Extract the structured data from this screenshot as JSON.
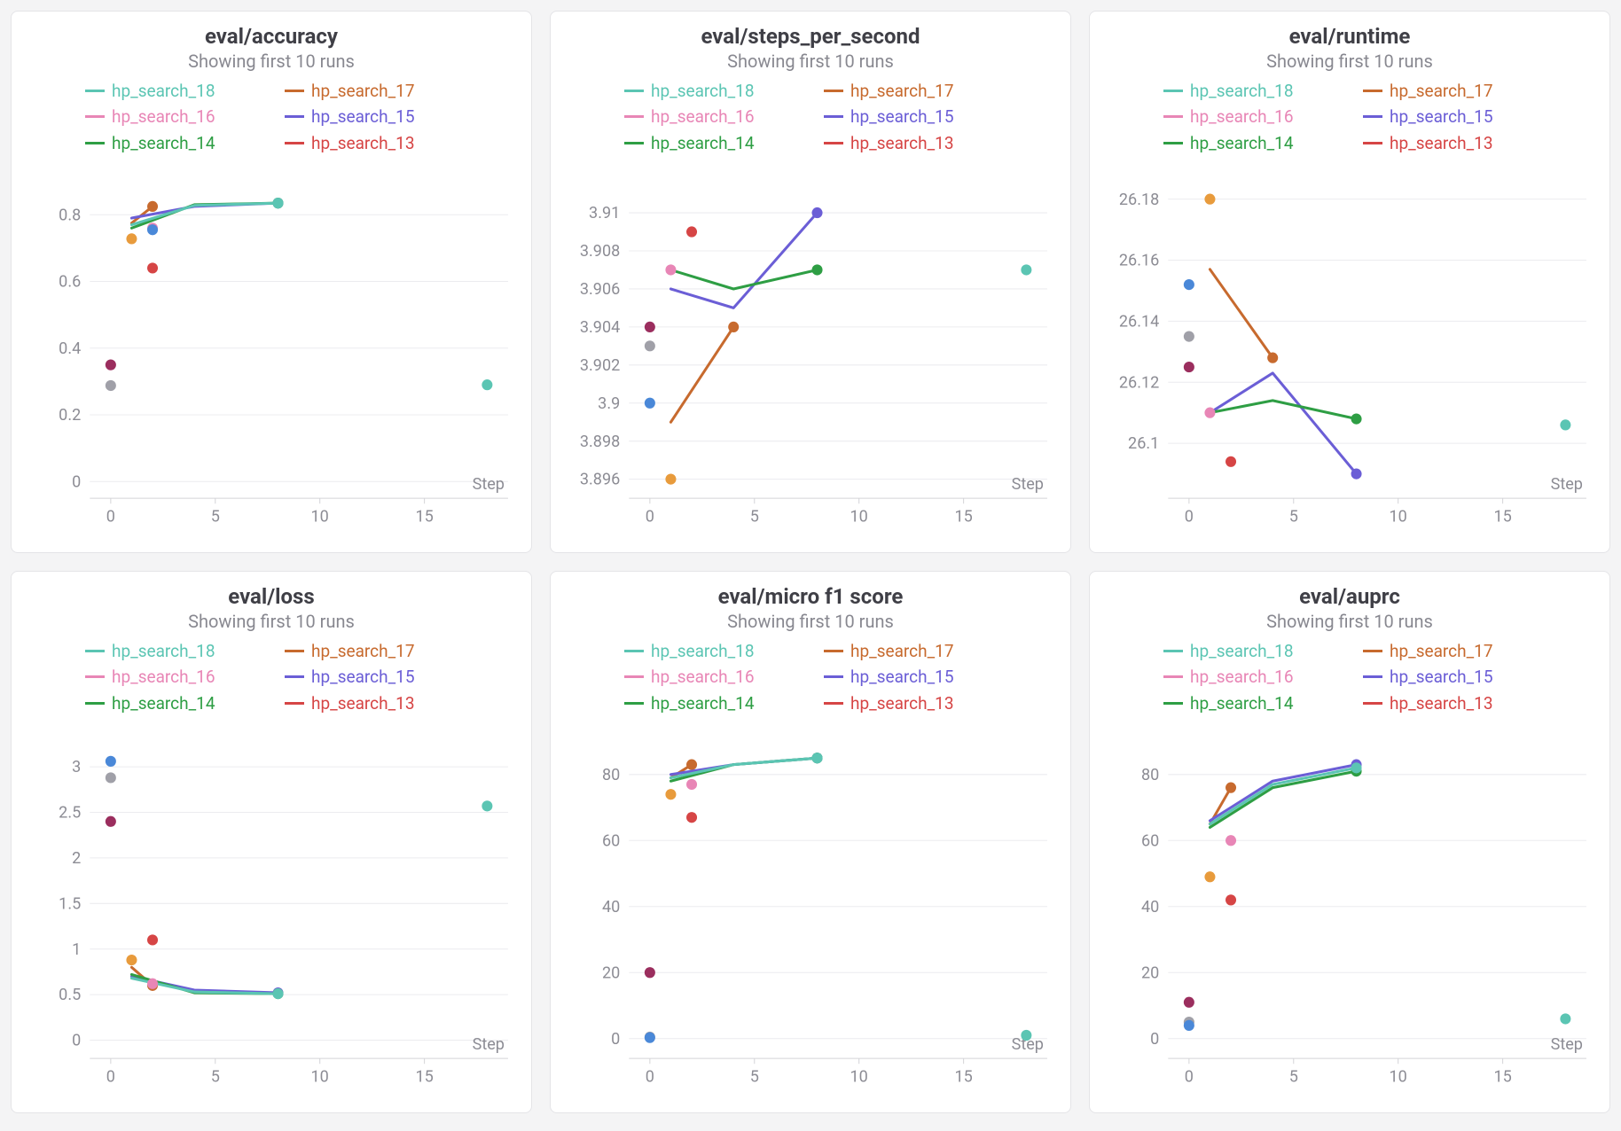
{
  "background_color": "#f4f4f5",
  "panel_bg": "#ffffff",
  "panel_border": "#e4e4e7",
  "grid_color": "#ececef",
  "axis_color": "#d4d4d8",
  "tick_font_color": "#8c8c94",
  "title_font_color": "#3f3f46",
  "title_fontsize": 24,
  "subtitle_fontsize": 20,
  "tick_fontsize": 18,
  "legend_fontsize": 19,
  "subtitle_text": "Showing first 10 runs",
  "xaxis_label": "Step",
  "run_colors": {
    "hp_search_18": "#5bc5b3",
    "hp_search_17": "#c76a2e",
    "hp_search_16": "#e886b6",
    "hp_search_15": "#6b5ed6",
    "hp_search_14": "#2e9e44",
    "hp_search_13": "#d64545",
    "hp_search_12": "#a0a0a8",
    "hp_search_11": "#4a88d8",
    "hp_search_10": "#e89b3c",
    "hp_search_9": "#9b2e5e"
  },
  "legend_order": [
    "hp_search_18",
    "hp_search_17",
    "hp_search_16",
    "hp_search_15",
    "hp_search_14",
    "hp_search_13"
  ],
  "panels": [
    {
      "id": "accuracy",
      "title": "eval/accuracy",
      "type": "line+scatter",
      "xlim": [
        -1,
        19
      ],
      "xticks": [
        0,
        5,
        10,
        15
      ],
      "ylim": [
        -0.05,
        0.92
      ],
      "yticks": [
        0,
        0.2,
        0.4,
        0.6,
        0.8
      ],
      "line_width": 3,
      "marker_r": 6,
      "series": [
        {
          "run": "hp_search_17",
          "mode": "line",
          "pts": [
            [
              1,
              0.775
            ],
            [
              2,
              0.825
            ]
          ]
        },
        {
          "run": "hp_search_15",
          "mode": "line",
          "pts": [
            [
              1,
              0.79
            ],
            [
              4,
              0.825
            ],
            [
              8,
              0.835
            ]
          ]
        },
        {
          "run": "hp_search_14",
          "mode": "line",
          "pts": [
            [
              1,
              0.76
            ],
            [
              4,
              0.83
            ],
            [
              8,
              0.835
            ]
          ]
        },
        {
          "run": "hp_search_18",
          "mode": "line",
          "pts": [
            [
              1,
              0.77
            ],
            [
              4,
              0.828
            ],
            [
              8,
              0.835
            ]
          ]
        },
        {
          "run": "hp_search_12",
          "mode": "point",
          "pts": [
            [
              0,
              0.288
            ]
          ]
        },
        {
          "run": "hp_search_9",
          "mode": "point",
          "pts": [
            [
              0,
              0.35
            ]
          ]
        },
        {
          "run": "hp_search_10",
          "mode": "point",
          "pts": [
            [
              1,
              0.728
            ]
          ]
        },
        {
          "run": "hp_search_16",
          "mode": "point",
          "pts": [
            [
              2,
              0.76
            ]
          ]
        },
        {
          "run": "hp_search_11",
          "mode": "point",
          "pts": [
            [
              2,
              0.755
            ]
          ]
        },
        {
          "run": "hp_search_13",
          "mode": "point",
          "pts": [
            [
              2,
              0.64
            ]
          ]
        },
        {
          "run": "hp_search_18",
          "mode": "point",
          "pts": [
            [
              18,
              0.29
            ]
          ]
        }
      ]
    },
    {
      "id": "sps",
      "title": "eval/steps_per_second",
      "type": "line+scatter",
      "xlim": [
        -1,
        19
      ],
      "xticks": [
        0,
        5,
        10,
        15
      ],
      "ylim": [
        3.895,
        3.912
      ],
      "yticks": [
        3.896,
        3.898,
        3.9,
        3.902,
        3.904,
        3.906,
        3.908,
        3.91
      ],
      "line_width": 3,
      "marker_r": 6,
      "series": [
        {
          "run": "hp_search_17",
          "mode": "line",
          "pts": [
            [
              1,
              3.899
            ],
            [
              4,
              3.904
            ]
          ]
        },
        {
          "run": "hp_search_15",
          "mode": "line",
          "pts": [
            [
              1,
              3.906
            ],
            [
              4,
              3.905
            ],
            [
              8,
              3.91
            ]
          ]
        },
        {
          "run": "hp_search_14",
          "mode": "line",
          "pts": [
            [
              1,
              3.907
            ],
            [
              4,
              3.906
            ],
            [
              8,
              3.907
            ]
          ]
        },
        {
          "run": "hp_search_16",
          "mode": "point",
          "pts": [
            [
              1,
              3.907
            ]
          ]
        },
        {
          "run": "hp_search_13",
          "mode": "point",
          "pts": [
            [
              2,
              3.909
            ]
          ]
        },
        {
          "run": "hp_search_9",
          "mode": "point",
          "pts": [
            [
              0,
              3.904
            ]
          ]
        },
        {
          "run": "hp_search_12",
          "mode": "point",
          "pts": [
            [
              0,
              3.903
            ]
          ]
        },
        {
          "run": "hp_search_11",
          "mode": "point",
          "pts": [
            [
              0,
              3.9
            ]
          ]
        },
        {
          "run": "hp_search_10",
          "mode": "point",
          "pts": [
            [
              1,
              3.896
            ]
          ]
        },
        {
          "run": "hp_search_18",
          "mode": "point",
          "pts": [
            [
              18,
              3.907
            ]
          ]
        }
      ]
    },
    {
      "id": "runtime",
      "title": "eval/runtime",
      "type": "line+scatter",
      "xlim": [
        -1,
        19
      ],
      "xticks": [
        0,
        5,
        10,
        15
      ],
      "ylim": [
        26.082,
        26.188
      ],
      "yticks": [
        26.1,
        26.12,
        26.14,
        26.16,
        26.18
      ],
      "line_width": 3,
      "marker_r": 6,
      "series": [
        {
          "run": "hp_search_17",
          "mode": "line",
          "pts": [
            [
              1,
              26.157
            ],
            [
              4,
              26.128
            ]
          ]
        },
        {
          "run": "hp_search_15",
          "mode": "line",
          "pts": [
            [
              1,
              26.11
            ],
            [
              4,
              26.123
            ],
            [
              8,
              26.09
            ]
          ]
        },
        {
          "run": "hp_search_14",
          "mode": "line",
          "pts": [
            [
              1,
              26.11
            ],
            [
              4,
              26.114
            ],
            [
              8,
              26.108
            ]
          ]
        },
        {
          "run": "hp_search_10",
          "mode": "point",
          "pts": [
            [
              1,
              26.18
            ]
          ]
        },
        {
          "run": "hp_search_11",
          "mode": "point",
          "pts": [
            [
              0,
              26.152
            ]
          ]
        },
        {
          "run": "hp_search_12",
          "mode": "point",
          "pts": [
            [
              0,
              26.135
            ]
          ]
        },
        {
          "run": "hp_search_9",
          "mode": "point",
          "pts": [
            [
              0,
              26.125
            ]
          ]
        },
        {
          "run": "hp_search_16",
          "mode": "point",
          "pts": [
            [
              1,
              26.11
            ]
          ]
        },
        {
          "run": "hp_search_13",
          "mode": "point",
          "pts": [
            [
              2,
              26.094
            ]
          ]
        },
        {
          "run": "hp_search_18",
          "mode": "point",
          "pts": [
            [
              18,
              26.106
            ]
          ]
        }
      ]
    },
    {
      "id": "loss",
      "title": "eval/loss",
      "type": "line+scatter",
      "xlim": [
        -1,
        19
      ],
      "xticks": [
        0,
        5,
        10,
        15
      ],
      "ylim": [
        -0.2,
        3.35
      ],
      "yticks": [
        0,
        0.5,
        1,
        1.5,
        2,
        2.5,
        3
      ],
      "line_width": 3,
      "marker_r": 6,
      "series": [
        {
          "run": "hp_search_17",
          "mode": "line",
          "pts": [
            [
              1,
              0.8
            ],
            [
              2,
              0.6
            ]
          ]
        },
        {
          "run": "hp_search_15",
          "mode": "line",
          "pts": [
            [
              1,
              0.7
            ],
            [
              4,
              0.55
            ],
            [
              8,
              0.52
            ]
          ]
        },
        {
          "run": "hp_search_14",
          "mode": "line",
          "pts": [
            [
              1,
              0.72
            ],
            [
              4,
              0.52
            ],
            [
              8,
              0.51
            ]
          ]
        },
        {
          "run": "hp_search_18",
          "mode": "line",
          "pts": [
            [
              1,
              0.68
            ],
            [
              4,
              0.53
            ],
            [
              8,
              0.51
            ]
          ]
        },
        {
          "run": "hp_search_11",
          "mode": "point",
          "pts": [
            [
              0,
              3.06
            ]
          ]
        },
        {
          "run": "hp_search_12",
          "mode": "point",
          "pts": [
            [
              0,
              2.88
            ]
          ]
        },
        {
          "run": "hp_search_9",
          "mode": "point",
          "pts": [
            [
              0,
              2.4
            ]
          ]
        },
        {
          "run": "hp_search_13",
          "mode": "point",
          "pts": [
            [
              2,
              1.1
            ]
          ]
        },
        {
          "run": "hp_search_10",
          "mode": "point",
          "pts": [
            [
              1,
              0.88
            ]
          ]
        },
        {
          "run": "hp_search_16",
          "mode": "point",
          "pts": [
            [
              2,
              0.62
            ]
          ]
        },
        {
          "run": "hp_search_18",
          "mode": "point",
          "pts": [
            [
              18,
              2.57
            ]
          ]
        }
      ]
    },
    {
      "id": "microf1",
      "title": "eval/micro f1 score",
      "type": "line+scatter",
      "xlim": [
        -1,
        19
      ],
      "xticks": [
        0,
        5,
        10,
        15
      ],
      "ylim": [
        -6,
        92
      ],
      "yticks": [
        0,
        20,
        40,
        60,
        80
      ],
      "line_width": 3,
      "marker_r": 6,
      "series": [
        {
          "run": "hp_search_17",
          "mode": "line",
          "pts": [
            [
              1,
              79
            ],
            [
              2,
              83
            ]
          ]
        },
        {
          "run": "hp_search_15",
          "mode": "line",
          "pts": [
            [
              1,
              80
            ],
            [
              4,
              83
            ],
            [
              8,
              85
            ]
          ]
        },
        {
          "run": "hp_search_14",
          "mode": "line",
          "pts": [
            [
              1,
              78
            ],
            [
              4,
              83
            ],
            [
              8,
              85
            ]
          ]
        },
        {
          "run": "hp_search_18",
          "mode": "line",
          "pts": [
            [
              1,
              79
            ],
            [
              4,
              83
            ],
            [
              8,
              85
            ]
          ]
        },
        {
          "run": "hp_search_10",
          "mode": "point",
          "pts": [
            [
              1,
              74
            ]
          ]
        },
        {
          "run": "hp_search_16",
          "mode": "point",
          "pts": [
            [
              2,
              77
            ]
          ]
        },
        {
          "run": "hp_search_13",
          "mode": "point",
          "pts": [
            [
              2,
              67
            ]
          ]
        },
        {
          "run": "hp_search_9",
          "mode": "point",
          "pts": [
            [
              0,
              20
            ]
          ]
        },
        {
          "run": "hp_search_12",
          "mode": "point",
          "pts": [
            [
              0,
              0.5
            ]
          ]
        },
        {
          "run": "hp_search_11",
          "mode": "point",
          "pts": [
            [
              0,
              0.3
            ]
          ]
        },
        {
          "run": "hp_search_18",
          "mode": "point",
          "pts": [
            [
              18,
              1
            ]
          ]
        }
      ]
    },
    {
      "id": "auprc",
      "title": "eval/auprc",
      "type": "line+scatter",
      "xlim": [
        -1,
        19
      ],
      "xticks": [
        0,
        5,
        10,
        15
      ],
      "ylim": [
        -6,
        92
      ],
      "yticks": [
        0,
        20,
        40,
        60,
        80
      ],
      "line_width": 3,
      "marker_r": 6,
      "series": [
        {
          "run": "hp_search_17",
          "mode": "line",
          "pts": [
            [
              1,
              65
            ],
            [
              2,
              76
            ]
          ]
        },
        {
          "run": "hp_search_15",
          "mode": "line",
          "pts": [
            [
              1,
              66
            ],
            [
              4,
              78
            ],
            [
              8,
              83
            ]
          ]
        },
        {
          "run": "hp_search_14",
          "mode": "line",
          "pts": [
            [
              1,
              64
            ],
            [
              4,
              76
            ],
            [
              8,
              81
            ]
          ]
        },
        {
          "run": "hp_search_18",
          "mode": "line",
          "pts": [
            [
              1,
              65
            ],
            [
              4,
              77
            ],
            [
              8,
              82
            ]
          ]
        },
        {
          "run": "hp_search_16",
          "mode": "point",
          "pts": [
            [
              2,
              60
            ]
          ]
        },
        {
          "run": "hp_search_10",
          "mode": "point",
          "pts": [
            [
              1,
              49
            ]
          ]
        },
        {
          "run": "hp_search_13",
          "mode": "point",
          "pts": [
            [
              2,
              42
            ]
          ]
        },
        {
          "run": "hp_search_9",
          "mode": "point",
          "pts": [
            [
              0,
              11
            ]
          ]
        },
        {
          "run": "hp_search_12",
          "mode": "point",
          "pts": [
            [
              0,
              5
            ]
          ]
        },
        {
          "run": "hp_search_11",
          "mode": "point",
          "pts": [
            [
              0,
              4
            ]
          ]
        },
        {
          "run": "hp_search_18",
          "mode": "point",
          "pts": [
            [
              18,
              6
            ]
          ]
        }
      ]
    }
  ]
}
